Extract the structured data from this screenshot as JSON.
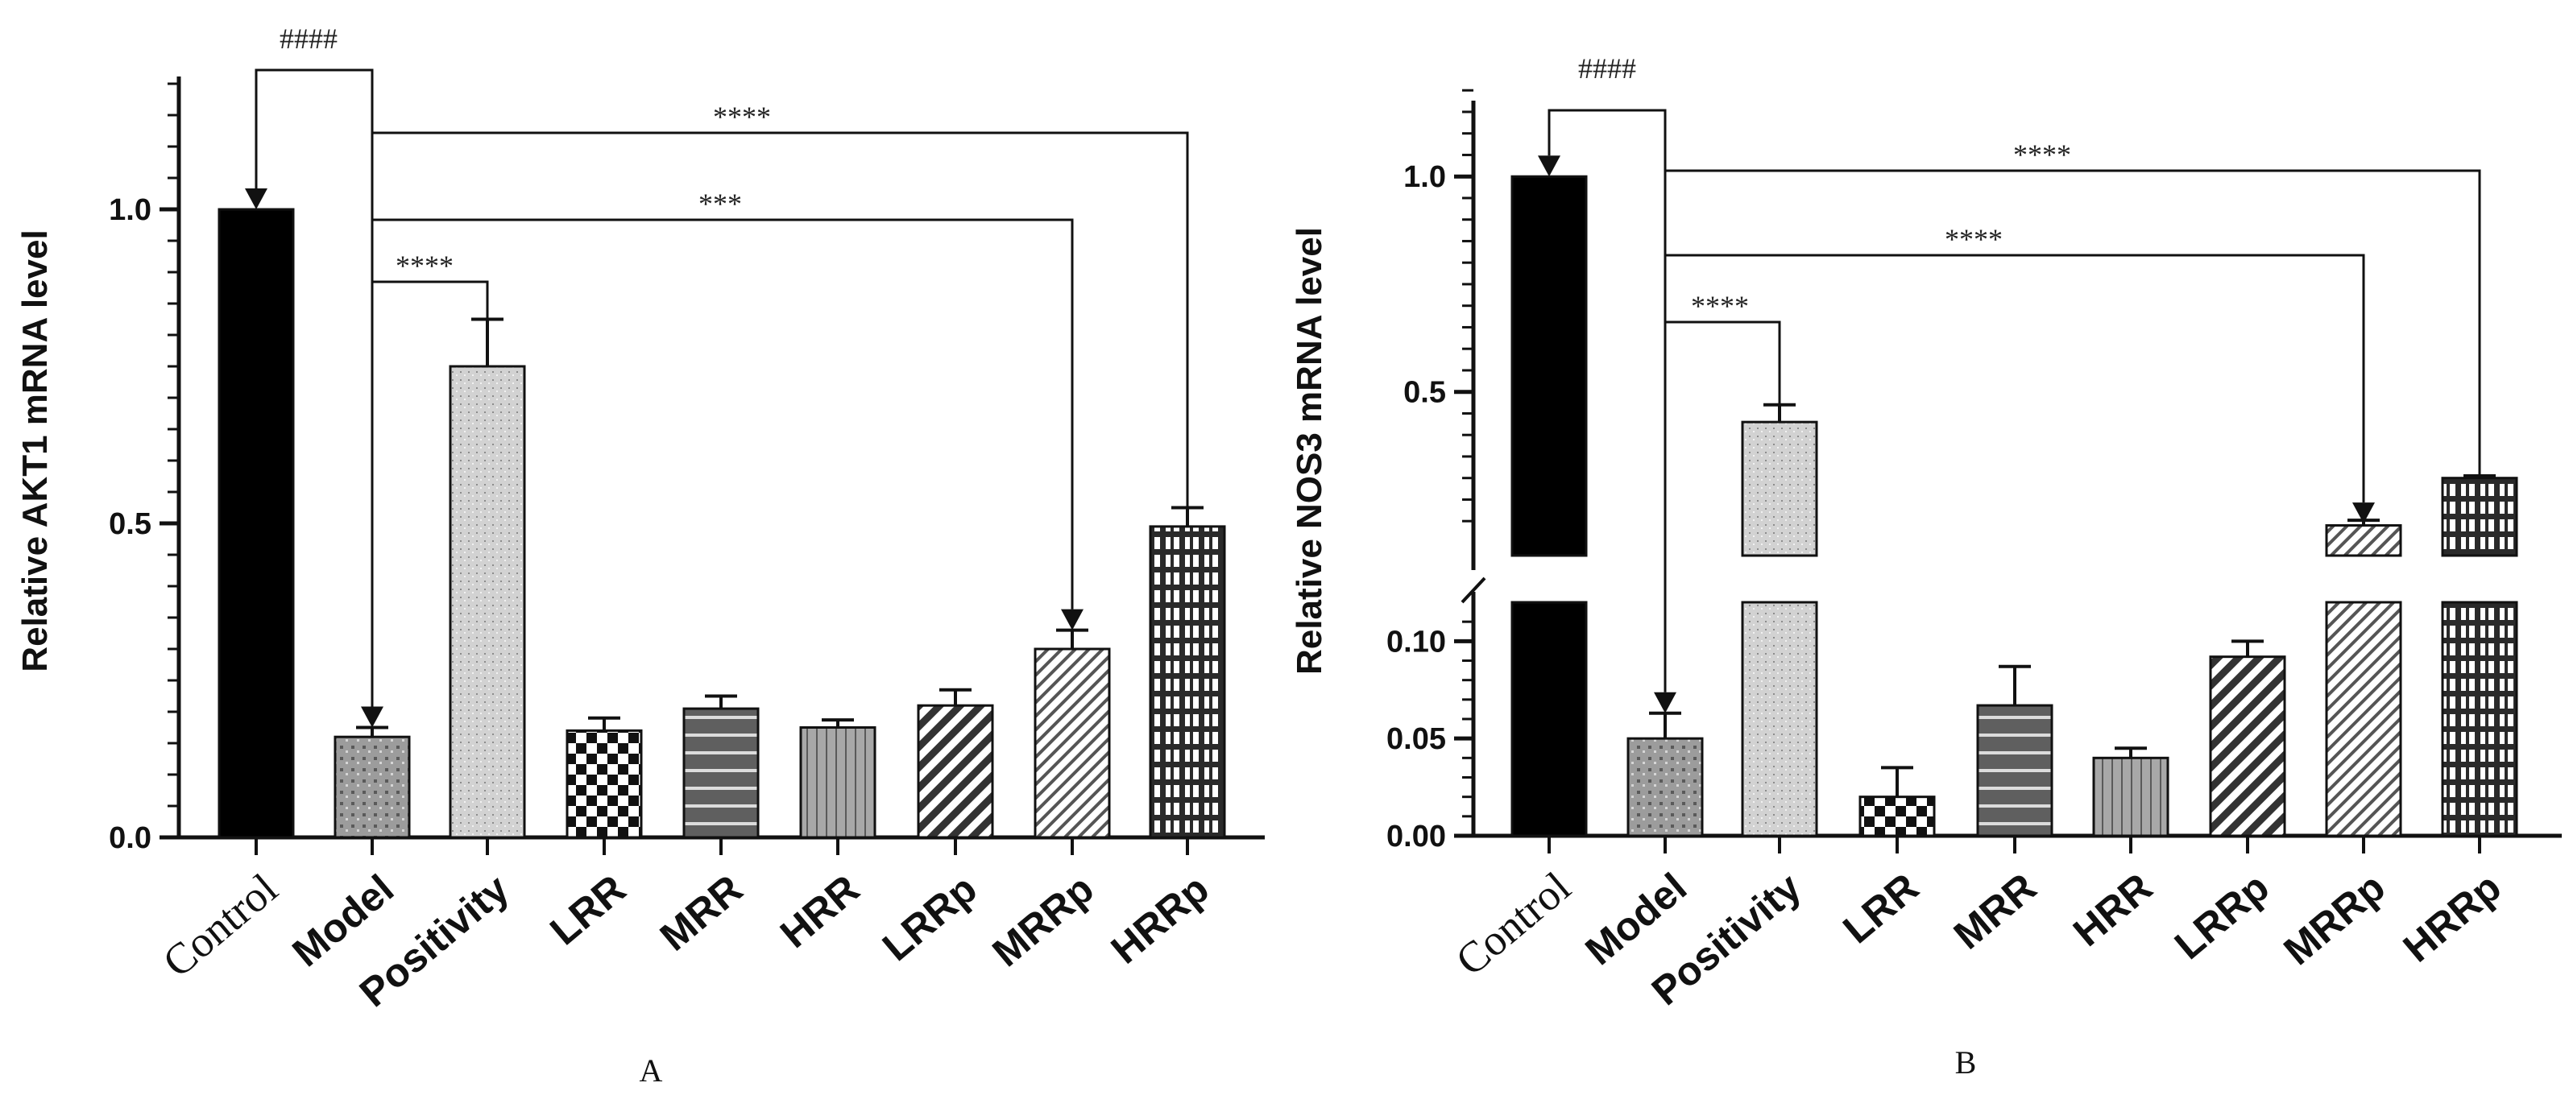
{
  "chart_data": [
    {
      "type": "bar",
      "panel": "A",
      "ylabel": "Relative AKT1 mRNA level",
      "ylim": [
        0,
        1.2
      ],
      "yticks": [
        {
          "value": 0.0,
          "label": "0.0"
        },
        {
          "value": 0.5,
          "label": "0.5"
        },
        {
          "value": 1.0,
          "label": "1.0"
        }
      ],
      "categories": [
        "Control",
        "Model",
        "Positivity",
        "LRR",
        "MRR",
        "HRR",
        "LRRp",
        "MRRp",
        "HRRp"
      ],
      "values": [
        1.0,
        0.16,
        0.75,
        0.17,
        0.205,
        0.175,
        0.21,
        0.3,
        0.495
      ],
      "errors": [
        0.0,
        0.015,
        0.075,
        0.02,
        0.02,
        0.012,
        0.025,
        0.03,
        0.03
      ],
      "comparisons": [
        {
          "from": "Model",
          "to": "Control",
          "label": "####"
        },
        {
          "from": "Model",
          "to": "Positivity",
          "label": "****"
        },
        {
          "from": "Model",
          "to": "MRRp",
          "label": "***"
        },
        {
          "from": "Model",
          "to": "HRRp",
          "label": "****"
        }
      ]
    },
    {
      "type": "bar",
      "panel": "B",
      "ylabel": "Relative NOS3 mRNA level",
      "axis_break": {
        "lower_range": [
          0,
          0.12
        ],
        "upper_range": [
          0.12,
          1.2
        ]
      },
      "yticks": [
        {
          "value": 0.0,
          "label": "0.00"
        },
        {
          "value": 0.05,
          "label": "0.05"
        },
        {
          "value": 0.1,
          "label": "0.10"
        },
        {
          "value": 0.5,
          "label": "0.5"
        },
        {
          "value": 1.0,
          "label": "1.0"
        }
      ],
      "categories": [
        "Control",
        "Model",
        "Positivity",
        "LRR",
        "MRR",
        "HRR",
        "LRRp",
        "MRRp",
        "HRRp"
      ],
      "values": [
        1.0,
        0.05,
        0.43,
        0.02,
        0.067,
        0.04,
        0.092,
        0.19,
        0.3
      ],
      "errors": [
        0.0,
        0.013,
        0.04,
        0.015,
        0.02,
        0.005,
        0.008,
        0.012,
        0.005
      ],
      "comparisons": [
        {
          "from": "Model",
          "to": "Control",
          "label": "####"
        },
        {
          "from": "Model",
          "to": "Positivity",
          "label": "****"
        },
        {
          "from": "Model",
          "to": "MRRp",
          "label": "****"
        },
        {
          "from": "Model",
          "to": "HRRp",
          "label": "****"
        }
      ]
    }
  ],
  "colors": {
    "Control": "#000000",
    "Model": "#9a9a9a",
    "Positivity": "#c9c9c9",
    "LRR": "#ffffff",
    "MRR": "#5f5f5f",
    "HRR": "#a6a6a6",
    "LRRp": "#ffffff",
    "MRRp": "#ffffff",
    "HRRp": "#2a2a2a"
  }
}
